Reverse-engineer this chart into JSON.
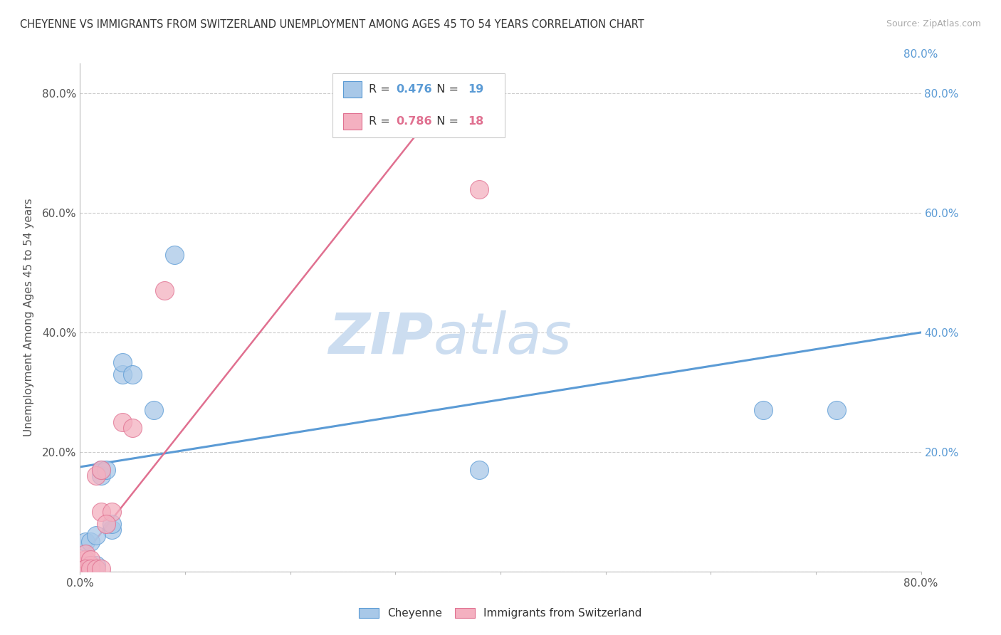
{
  "title": "CHEYENNE VS IMMIGRANTS FROM SWITZERLAND UNEMPLOYMENT AMONG AGES 45 TO 54 YEARS CORRELATION CHART",
  "source_text": "Source: ZipAtlas.com",
  "ylabel": "Unemployment Among Ages 45 to 54 years",
  "xlim": [
    0,
    0.8
  ],
  "ylim": [
    0,
    0.85
  ],
  "xticks": [
    0.0,
    0.1,
    0.2,
    0.3,
    0.4,
    0.5,
    0.6,
    0.7,
    0.8
  ],
  "xticklabels": [
    "0.0%",
    "",
    "",
    "",
    "",
    "",
    "",
    "",
    "80.0%"
  ],
  "yticks": [
    0.0,
    0.2,
    0.4,
    0.6,
    0.8
  ],
  "yticklabels": [
    "",
    "20.0%",
    "40.0%",
    "60.0%",
    "80.0%"
  ],
  "cheyenne_x": [
    0.005,
    0.01,
    0.015,
    0.02,
    0.02,
    0.025,
    0.03,
    0.04,
    0.04,
    0.05,
    0.07,
    0.09,
    0.38,
    0.65,
    0.72,
    0.005,
    0.01,
    0.015,
    0.03
  ],
  "cheyenne_y": [
    0.01,
    0.01,
    0.01,
    0.16,
    0.17,
    0.17,
    0.07,
    0.33,
    0.35,
    0.33,
    0.27,
    0.53,
    0.17,
    0.27,
    0.27,
    0.05,
    0.05,
    0.06,
    0.08
  ],
  "swiss_x": [
    0.005,
    0.005,
    0.005,
    0.01,
    0.01,
    0.015,
    0.02,
    0.02,
    0.03,
    0.04,
    0.05,
    0.08,
    0.38,
    0.005,
    0.01,
    0.015,
    0.02,
    0.025
  ],
  "swiss_y": [
    0.01,
    0.02,
    0.03,
    0.01,
    0.02,
    0.16,
    0.1,
    0.17,
    0.1,
    0.25,
    0.24,
    0.47,
    0.64,
    0.005,
    0.005,
    0.005,
    0.005,
    0.08
  ],
  "cheyenne_color": "#a8c8e8",
  "swiss_color": "#f4b0c0",
  "cheyenne_line_color": "#5b9bd5",
  "swiss_line_color": "#e07090",
  "R_cheyenne": 0.476,
  "N_cheyenne": 19,
  "R_swiss": 0.786,
  "N_swiss": 18,
  "watermark_zip": "ZIP",
  "watermark_atlas": "atlas",
  "watermark_color": "#ccddf0",
  "background_color": "#ffffff",
  "grid_color": "#cccccc",
  "legend_label_cheyenne": "Cheyenne",
  "legend_label_swiss": "Immigrants from Switzerland"
}
